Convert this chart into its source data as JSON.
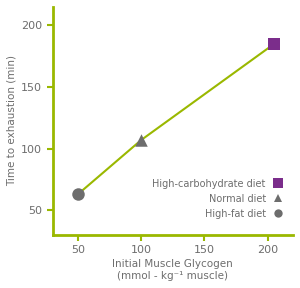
{
  "x": [
    50,
    100,
    205
  ],
  "y": [
    63,
    107,
    185
  ],
  "marker_colors": [
    "#6d6d6d",
    "#6d6d6d",
    "#7b2d8b"
  ],
  "marker_styles": [
    "o",
    "^",
    "s"
  ],
  "marker_sizes": [
    9,
    9,
    9
  ],
  "line_color": "#9ab800",
  "axis_color": "#9ab800",
  "xlabel_line1": "Initial Muscle Glycogen",
  "xlabel_line2": "(mmol - kg⁻¹ muscle)",
  "ylabel": "Time to exhaustion (min)",
  "xlim": [
    30,
    220
  ],
  "ylim": [
    30,
    215
  ],
  "xticks": [
    50,
    100,
    150,
    200
  ],
  "yticks": [
    50,
    100,
    150,
    200
  ],
  "legend_labels": [
    "High-carbohydrate diet",
    "Normal diet",
    "High-fat diet"
  ],
  "legend_colors": [
    "#7b2d8b",
    "#6d6d6d",
    "#6d6d6d"
  ],
  "legend_markers": [
    "s",
    "^",
    "o"
  ],
  "text_color": "#6d6d6d",
  "background_color": "#ffffff",
  "label_fontsize": 7.5,
  "tick_fontsize": 8,
  "legend_fontsize": 7
}
